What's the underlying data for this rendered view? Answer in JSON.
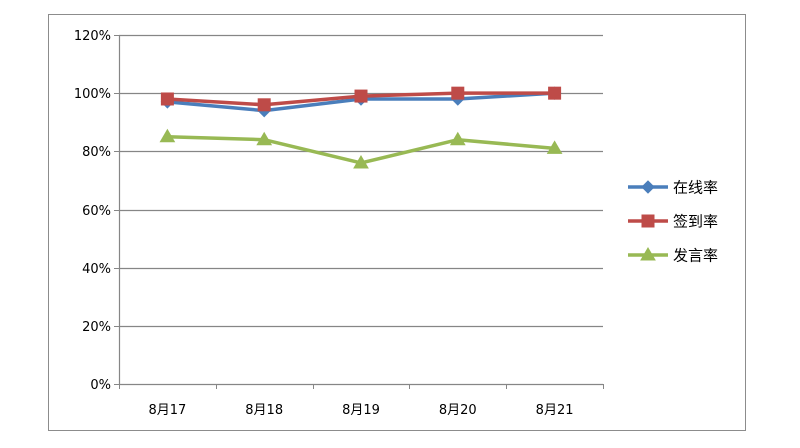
{
  "chart_data": {
    "type": "line",
    "categories": [
      "8月17",
      "8月18",
      "8月19",
      "8月20",
      "8月21"
    ],
    "y_ticks": [
      "0%",
      "20%",
      "40%",
      "60%",
      "80%",
      "100%",
      "120%"
    ],
    "ylim": [
      0,
      120
    ],
    "y_unit": "%",
    "grid": true,
    "legend_position": "right",
    "series": [
      {
        "name": "在线率",
        "values": [
          97,
          94,
          98,
          98,
          100
        ],
        "color": "#4a7ebb",
        "marker": "diamond"
      },
      {
        "name": "签到率",
        "values": [
          98,
          96,
          99,
          100,
          100
        ],
        "color": "#be4b48",
        "marker": "square"
      },
      {
        "name": "发言率",
        "values": [
          85,
          84,
          76,
          84,
          81
        ],
        "color": "#98b954",
        "marker": "triangle"
      }
    ]
  }
}
